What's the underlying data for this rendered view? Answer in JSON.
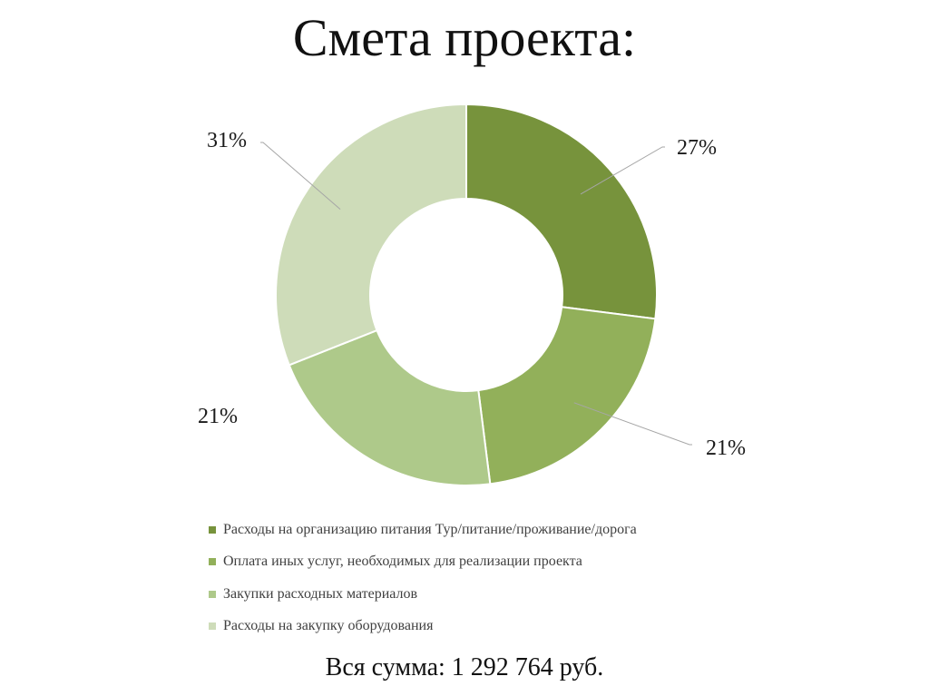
{
  "slide": {
    "title": "Смета проекта:",
    "total_text": "Вся сумма: 1 292 764 руб."
  },
  "chart_data": {
    "type": "pie",
    "donut": true,
    "start_angle_deg": 0,
    "categories": [
      "Расходы на организацию питания Тур/питание/проживание/дорога",
      "Оплата иных услуг, необходимых для реализации проекта",
      "Закупки расходных материалов",
      "Расходы на закупку оборудования"
    ],
    "values": [
      27,
      21,
      21,
      31
    ],
    "labels": [
      "27%",
      "21%",
      "21%",
      "31%"
    ],
    "colors": [
      "#77933c",
      "#92b05a",
      "#aec98a",
      "#cedcb9"
    ],
    "legend_position": "bottom"
  }
}
